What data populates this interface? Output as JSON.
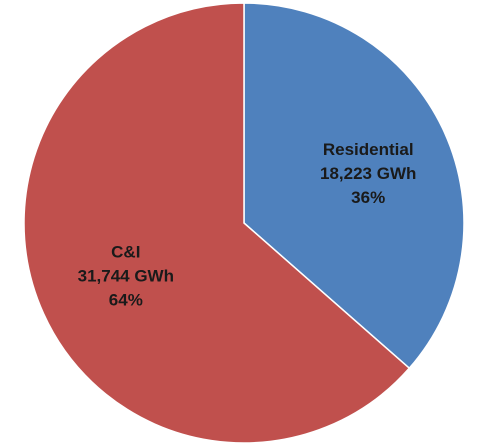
{
  "chart_data": {
    "type": "pie",
    "title": "",
    "slices": [
      {
        "name": "Residential",
        "value": 18223,
        "value_label": "18,223 GWh",
        "percent_label": "36%",
        "color": "#4F81BD"
      },
      {
        "name": "C&I",
        "value": 31744,
        "value_label": "31,744 GWh",
        "percent_label": "64%",
        "color": "#C0504D"
      }
    ],
    "unit": "GWh",
    "start_angle_deg": 0,
    "direction": "clockwise",
    "legend": "none",
    "label_placement": "inside"
  }
}
